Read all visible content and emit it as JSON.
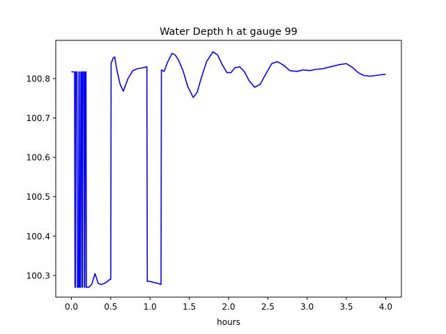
{
  "chart_data": {
    "type": "line",
    "title": "Water Depth h at gauge 99",
    "xlabel": "hours",
    "ylabel": "",
    "xlim": [
      -0.2,
      4.2
    ],
    "ylim": [
      100.245,
      100.897
    ],
    "xticks": [
      0.0,
      0.5,
      1.0,
      1.5,
      2.0,
      2.5,
      3.0,
      3.5,
      4.0
    ],
    "xtick_labels": [
      "0.0",
      "0.5",
      "1.0",
      "1.5",
      "2.0",
      "2.5",
      "3.0",
      "3.5",
      "4.0"
    ],
    "yticks": [
      100.3,
      100.4,
      100.5,
      100.6,
      100.7,
      100.8
    ],
    "ytick_labels": [
      "100.3",
      "100.4",
      "100.5",
      "100.6",
      "100.7",
      "100.8"
    ],
    "grid": false,
    "series": [
      {
        "color": "#0000ff",
        "x": [
          0.0,
          0.04,
          0.045,
          0.05,
          0.055,
          0.07,
          0.075,
          0.09,
          0.095,
          0.1,
          0.105,
          0.115,
          0.12,
          0.13,
          0.135,
          0.14,
          0.145,
          0.16,
          0.165,
          0.17,
          0.175,
          0.185,
          0.19,
          0.2,
          0.205,
          0.22,
          0.26,
          0.3,
          0.34,
          0.38,
          0.42,
          0.46,
          0.49,
          0.5,
          0.505,
          0.53,
          0.55,
          0.58,
          0.62,
          0.66,
          0.72,
          0.78,
          0.84,
          0.9,
          0.96,
          0.965,
          1.0,
          1.05,
          1.1,
          1.14,
          1.145,
          1.18,
          1.22,
          1.28,
          1.32,
          1.36,
          1.42,
          1.48,
          1.55,
          1.6,
          1.65,
          1.72,
          1.8,
          1.86,
          1.92,
          1.98,
          2.03,
          2.08,
          2.14,
          2.2,
          2.26,
          2.33,
          2.4,
          2.47,
          2.55,
          2.62,
          2.7,
          2.78,
          2.87,
          2.95,
          3.03,
          3.1,
          3.2,
          3.3,
          3.4,
          3.5,
          3.58,
          3.65,
          3.72,
          3.8,
          3.88,
          3.95,
          4.0
        ],
        "y": [
          100.817,
          100.817,
          100.27,
          100.27,
          100.817,
          100.817,
          100.27,
          100.27,
          100.817,
          100.817,
          100.27,
          100.27,
          100.817,
          100.817,
          100.27,
          100.27,
          100.817,
          100.817,
          100.27,
          100.27,
          100.817,
          100.817,
          100.27,
          100.27,
          100.27,
          100.27,
          100.278,
          100.305,
          100.28,
          100.277,
          100.28,
          100.285,
          100.29,
          100.29,
          100.838,
          100.852,
          100.855,
          100.82,
          100.785,
          100.768,
          100.8,
          100.82,
          100.825,
          100.827,
          100.83,
          100.285,
          100.285,
          100.282,
          100.28,
          100.277,
          100.822,
          100.818,
          100.84,
          100.864,
          100.86,
          100.848,
          100.82,
          100.78,
          100.752,
          100.765,
          100.8,
          100.843,
          100.868,
          100.86,
          100.835,
          100.815,
          100.815,
          100.827,
          100.83,
          100.818,
          100.795,
          100.778,
          100.785,
          100.81,
          100.838,
          100.843,
          100.834,
          100.82,
          100.818,
          100.822,
          100.82,
          100.823,
          100.825,
          100.83,
          100.835,
          100.838,
          100.828,
          100.815,
          100.808,
          100.806,
          100.808,
          100.81,
          100.811
        ]
      }
    ]
  }
}
